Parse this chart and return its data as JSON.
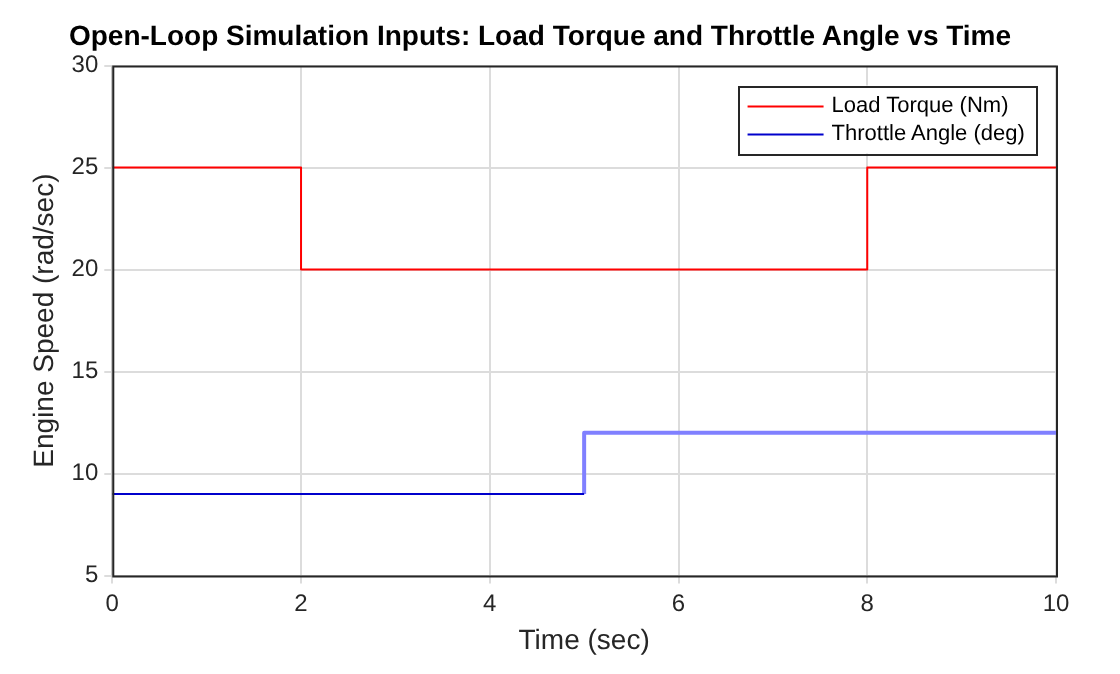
{
  "chart_data": {
    "type": "step",
    "title": "Open-Loop Simulation Inputs: Load Torque and Throttle Angle vs Time",
    "xlabel": "Time (sec)",
    "ylabel": "Engine Speed (rad/sec)",
    "series": [
      {
        "name": "Load Torque (Nm)",
        "color": "#ff0000",
        "x": [
          0,
          2,
          8,
          10
        ],
        "values": [
          25,
          20,
          25,
          25
        ]
      },
      {
        "name": "Throttle Angle (deg)",
        "color": "#0000cc",
        "x": [
          0,
          5
        ],
        "values": [
          9,
          9
        ]
      },
      {
        "type": "line",
        "color": "#8080ff",
        "x": [
          5,
          5,
          10
        ],
        "values": [
          9,
          12,
          12
        ]
      }
    ],
    "xlim": [
      0,
      10
    ],
    "xticks": [
      0,
      2,
      4,
      6,
      8,
      10
    ],
    "ylim": [
      5,
      30
    ],
    "yticks": [
      5,
      10,
      15,
      20,
      25,
      30
    ],
    "grid": true,
    "legend": "top right"
  }
}
